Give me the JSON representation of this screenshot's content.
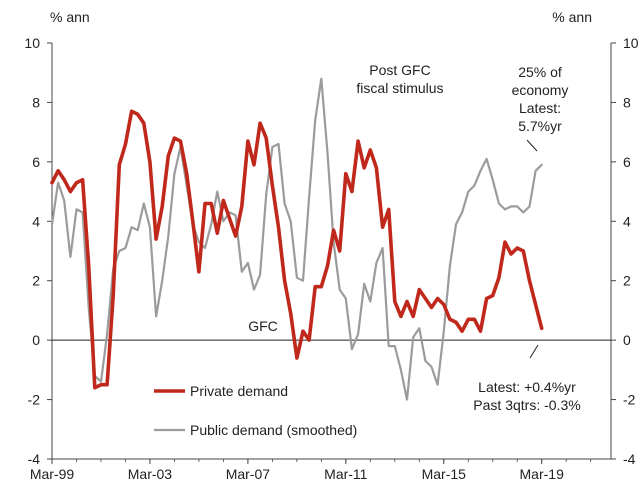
{
  "chart_data": {
    "type": "line",
    "title": "",
    "ylabel_left": "% ann",
    "ylabel_right": "% ann",
    "ylim": [
      -4,
      10
    ],
    "yticks": [
      -4,
      -2,
      0,
      2,
      4,
      6,
      8,
      10
    ],
    "xlim": [
      1999.17,
      2022.0
    ],
    "x_tick_labels": [
      "Mar-99",
      "Mar-03",
      "Mar-07",
      "Mar-11",
      "Mar-15",
      "Mar-19"
    ],
    "x_tick_values": [
      1999.17,
      2003.17,
      2007.17,
      2011.17,
      2015.17,
      2019.17
    ],
    "zero_line": true,
    "grid": false,
    "legend_placement": "bottom-left",
    "colors": {
      "private": "#c0281c",
      "public": "#9b9b9b",
      "axis": "#444444"
    },
    "series": [
      {
        "name": "Private demand",
        "color": "#c0281c",
        "points": [
          [
            1999.17,
            5.3
          ],
          [
            1999.42,
            5.7
          ],
          [
            1999.67,
            5.4
          ],
          [
            1999.92,
            5.0
          ],
          [
            2000.17,
            5.3
          ],
          [
            2000.42,
            5.4
          ],
          [
            2000.67,
            2.5
          ],
          [
            2000.92,
            -1.6
          ],
          [
            2001.17,
            -1.5
          ],
          [
            2001.42,
            -1.5
          ],
          [
            2001.67,
            1.5
          ],
          [
            2001.92,
            5.9
          ],
          [
            2002.17,
            6.6
          ],
          [
            2002.42,
            7.7
          ],
          [
            2002.67,
            7.6
          ],
          [
            2002.92,
            7.3
          ],
          [
            2003.17,
            6.0
          ],
          [
            2003.42,
            3.4
          ],
          [
            2003.67,
            4.5
          ],
          [
            2003.92,
            6.2
          ],
          [
            2004.17,
            6.8
          ],
          [
            2004.42,
            6.7
          ],
          [
            2004.67,
            5.6
          ],
          [
            2004.92,
            4.0
          ],
          [
            2005.17,
            2.3
          ],
          [
            2005.42,
            4.6
          ],
          [
            2005.67,
            4.6
          ],
          [
            2005.92,
            3.6
          ],
          [
            2006.17,
            4.7
          ],
          [
            2006.42,
            4.1
          ],
          [
            2006.67,
            3.5
          ],
          [
            2006.92,
            4.5
          ],
          [
            2007.17,
            6.7
          ],
          [
            2007.42,
            5.9
          ],
          [
            2007.67,
            7.3
          ],
          [
            2007.92,
            6.8
          ],
          [
            2008.17,
            5.2
          ],
          [
            2008.42,
            3.8
          ],
          [
            2008.67,
            2.0
          ],
          [
            2008.92,
            0.9
          ],
          [
            2009.17,
            -0.6
          ],
          [
            2009.42,
            0.3
          ],
          [
            2009.67,
            0.0
          ],
          [
            2009.92,
            1.8
          ],
          [
            2010.17,
            1.8
          ],
          [
            2010.42,
            2.5
          ],
          [
            2010.67,
            3.7
          ],
          [
            2010.92,
            3.0
          ],
          [
            2011.17,
            5.6
          ],
          [
            2011.42,
            5.0
          ],
          [
            2011.67,
            6.7
          ],
          [
            2011.92,
            5.8
          ],
          [
            2012.17,
            6.4
          ],
          [
            2012.42,
            5.8
          ],
          [
            2012.67,
            3.8
          ],
          [
            2012.92,
            4.4
          ],
          [
            2013.17,
            1.3
          ],
          [
            2013.42,
            0.8
          ],
          [
            2013.67,
            1.3
          ],
          [
            2013.92,
            0.8
          ],
          [
            2014.17,
            1.7
          ],
          [
            2014.42,
            1.4
          ],
          [
            2014.67,
            1.1
          ],
          [
            2014.92,
            1.4
          ],
          [
            2015.17,
            1.2
          ],
          [
            2015.42,
            0.7
          ],
          [
            2015.67,
            0.6
          ],
          [
            2015.92,
            0.3
          ],
          [
            2016.17,
            0.7
          ],
          [
            2016.42,
            0.7
          ],
          [
            2016.67,
            0.3
          ],
          [
            2016.92,
            1.4
          ],
          [
            2017.17,
            1.5
          ],
          [
            2017.42,
            2.1
          ],
          [
            2017.67,
            3.3
          ],
          [
            2017.92,
            2.9
          ],
          [
            2018.17,
            3.1
          ],
          [
            2018.42,
            3.0
          ],
          [
            2018.67,
            2.0
          ],
          [
            2018.92,
            1.2
          ],
          [
            2019.17,
            0.4
          ]
        ]
      },
      {
        "name": "Public demand (smoothed)",
        "color": "#9b9b9b",
        "points": [
          [
            1999.17,
            3.9
          ],
          [
            1999.42,
            5.3
          ],
          [
            1999.67,
            4.7
          ],
          [
            1999.92,
            2.8
          ],
          [
            2000.17,
            4.4
          ],
          [
            2000.42,
            4.3
          ],
          [
            2000.67,
            1.1
          ],
          [
            2000.92,
            -1.2
          ],
          [
            2001.17,
            -1.4
          ],
          [
            2001.42,
            0.2
          ],
          [
            2001.67,
            2.4
          ],
          [
            2001.92,
            3.0
          ],
          [
            2002.17,
            3.1
          ],
          [
            2002.42,
            3.8
          ],
          [
            2002.67,
            3.7
          ],
          [
            2002.92,
            4.6
          ],
          [
            2003.17,
            3.8
          ],
          [
            2003.42,
            0.8
          ],
          [
            2003.67,
            2.0
          ],
          [
            2003.92,
            3.5
          ],
          [
            2004.17,
            5.6
          ],
          [
            2004.42,
            6.5
          ],
          [
            2004.67,
            5.2
          ],
          [
            2004.92,
            3.9
          ],
          [
            2005.17,
            3.3
          ],
          [
            2005.42,
            3.1
          ],
          [
            2005.67,
            3.9
          ],
          [
            2005.92,
            5.0
          ],
          [
            2006.17,
            4.0
          ],
          [
            2006.42,
            4.3
          ],
          [
            2006.67,
            4.2
          ],
          [
            2006.92,
            2.3
          ],
          [
            2007.17,
            2.6
          ],
          [
            2007.42,
            1.7
          ],
          [
            2007.67,
            2.2
          ],
          [
            2007.92,
            4.9
          ],
          [
            2008.17,
            6.5
          ],
          [
            2008.42,
            6.6
          ],
          [
            2008.67,
            4.6
          ],
          [
            2008.92,
            4.0
          ],
          [
            2009.17,
            2.1
          ],
          [
            2009.42,
            2.0
          ],
          [
            2009.67,
            4.8
          ],
          [
            2009.92,
            7.4
          ],
          [
            2010.17,
            8.8
          ],
          [
            2010.42,
            6.3
          ],
          [
            2010.67,
            3.3
          ],
          [
            2010.92,
            1.7
          ],
          [
            2011.17,
            1.4
          ],
          [
            2011.42,
            -0.3
          ],
          [
            2011.67,
            0.2
          ],
          [
            2011.92,
            1.9
          ],
          [
            2012.17,
            1.3
          ],
          [
            2012.42,
            2.6
          ],
          [
            2012.67,
            3.1
          ],
          [
            2012.92,
            -0.2
          ],
          [
            2013.17,
            -0.2
          ],
          [
            2013.42,
            -1.0
          ],
          [
            2013.67,
            -2.0
          ],
          [
            2013.92,
            0.1
          ],
          [
            2014.17,
            0.4
          ],
          [
            2014.42,
            -0.7
          ],
          [
            2014.67,
            -0.9
          ],
          [
            2014.92,
            -1.5
          ],
          [
            2015.17,
            0.3
          ],
          [
            2015.42,
            2.5
          ],
          [
            2015.67,
            3.9
          ],
          [
            2015.92,
            4.3
          ],
          [
            2016.17,
            5.0
          ],
          [
            2016.42,
            5.2
          ],
          [
            2016.67,
            5.7
          ],
          [
            2016.92,
            6.1
          ],
          [
            2017.17,
            5.4
          ],
          [
            2017.42,
            4.6
          ],
          [
            2017.67,
            4.4
          ],
          [
            2017.92,
            4.5
          ],
          [
            2018.17,
            4.5
          ],
          [
            2018.42,
            4.3
          ],
          [
            2018.67,
            4.5
          ],
          [
            2018.92,
            5.7
          ],
          [
            2019.17,
            5.9
          ]
        ]
      }
    ],
    "annotations": [
      {
        "id": "post_gfc",
        "lines": [
          "Post GFC",
          "fiscal stimulus"
        ]
      },
      {
        "id": "economy_share",
        "lines": [
          "25% of",
          "economy",
          "Latest:",
          "5.7%yr"
        ]
      },
      {
        "id": "gfc",
        "lines": [
          "GFC"
        ]
      },
      {
        "id": "latest_private",
        "lines": [
          "Latest: +0.4%yr",
          "Past 3qtrs: -0.3%"
        ]
      }
    ]
  }
}
